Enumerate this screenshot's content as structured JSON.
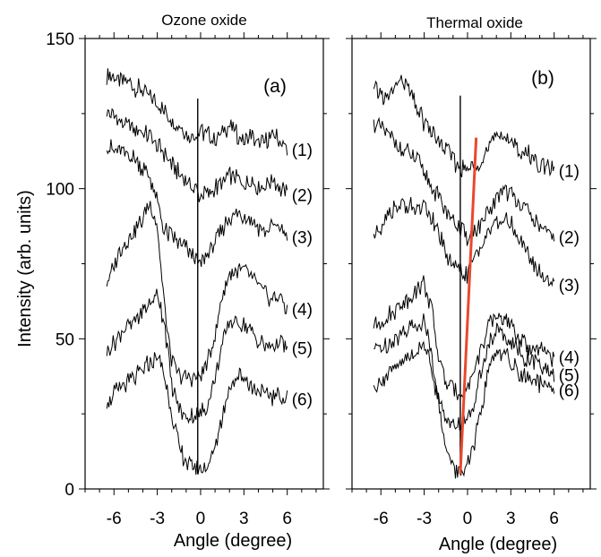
{
  "figure": {
    "ylabel": "Intensity (arb. units)"
  },
  "chart_data": [
    {
      "type": "line",
      "panel_title": "Ozone oxide",
      "panel_tag": "(a)",
      "xlabel": "Angle (degree)",
      "ylabel": "Intensity (arb. units)",
      "xlim": [
        -8,
        8.5
      ],
      "ylim": [
        0,
        150
      ],
      "xticks": [
        -6,
        -3,
        0,
        3,
        6
      ],
      "yticks": [
        0,
        50,
        100,
        150
      ],
      "reference_line": {
        "x": -0.2,
        "y_range": [
          5,
          130
        ],
        "color": "#000000"
      },
      "x": [
        -6.5,
        -5.5,
        -4.5,
        -3.5,
        -3,
        -2.5,
        -2,
        -1.5,
        -1,
        -0.5,
        0,
        0.5,
        1,
        1.5,
        2,
        2.5,
        3,
        3.5,
        4,
        4.5,
        5,
        5.5,
        6
      ],
      "series": [
        {
          "name": "(1)",
          "values": [
            138,
            136,
            134,
            130,
            128,
            126,
            123,
            121,
            118,
            118,
            119,
            118,
            116,
            119,
            121,
            118,
            116,
            118,
            115,
            116,
            118,
            116,
            113
          ]
        },
        {
          "name": "(2)",
          "values": [
            126,
            122,
            120,
            117,
            114,
            112,
            108,
            105,
            103,
            100,
            98,
            98,
            100,
            102,
            105,
            103,
            101,
            103,
            100,
            101,
            103,
            100,
            98
          ]
        },
        {
          "name": "(3)",
          "values": [
            114,
            112,
            110,
            104,
            95,
            86,
            84,
            82,
            80,
            77,
            75,
            78,
            82,
            86,
            90,
            92,
            91,
            90,
            87,
            86,
            88,
            87,
            84
          ]
        },
        {
          "name": "(4)",
          "values": [
            68,
            80,
            86,
            95,
            88,
            60,
            42,
            38,
            37,
            37,
            38,
            42,
            52,
            64,
            72,
            73,
            73,
            71,
            68,
            65,
            63,
            64,
            60
          ]
        },
        {
          "name": "(5)",
          "values": [
            45,
            52,
            56,
            62,
            65,
            55,
            35,
            26,
            24,
            24,
            25,
            28,
            36,
            48,
            55,
            56,
            55,
            52,
            50,
            47,
            48,
            49,
            47
          ]
        },
        {
          "name": "(6)",
          "values": [
            29,
            34,
            37,
            42,
            44,
            38,
            25,
            14,
            9,
            7,
            6,
            8,
            14,
            24,
            34,
            38,
            37,
            34,
            33,
            31,
            31,
            31,
            30
          ]
        }
      ]
    },
    {
      "type": "line",
      "panel_title": "Thermal oxide",
      "panel_tag": "(b)",
      "xlabel": "Angle (degree)",
      "ylabel": "",
      "xlim": [
        -8,
        8.5
      ],
      "ylim": [
        0,
        150
      ],
      "xticks": [
        -6,
        -3,
        0,
        3,
        6
      ],
      "yticks": [
        0,
        50,
        100,
        150
      ],
      "reference_line": {
        "x": -0.5,
        "y_range": [
          5,
          131
        ],
        "color": "#000000"
      },
      "fit_line": {
        "x": [
          -0.5,
          0.6
        ],
        "y": [
          5,
          117
        ],
        "color": "#e8482e"
      },
      "x": [
        -6.5,
        -5.5,
        -4.5,
        -3.5,
        -3,
        -2.5,
        -2,
        -1.5,
        -1,
        -0.5,
        0,
        0.5,
        1,
        1.5,
        2,
        2.5,
        3,
        3.5,
        4,
        4.5,
        5,
        5.5,
        6
      ],
      "series": [
        {
          "name": "(1)",
          "values": [
            133,
            130,
            137,
            126,
            122,
            119,
            116,
            113,
            110,
            107,
            106,
            108,
            110,
            114,
            117,
            118,
            116,
            113,
            112,
            111,
            108,
            107,
            106
          ]
        },
        {
          "name": "(2)",
          "values": [
            122,
            118,
            113,
            109,
            105,
            101,
            97,
            93,
            90,
            86,
            84,
            86,
            88,
            92,
            97,
            100,
            98,
            96,
            93,
            90,
            87,
            85,
            84
          ]
        },
        {
          "name": "(3)",
          "values": [
            84,
            92,
            95,
            93,
            94,
            90,
            85,
            78,
            75,
            72,
            72,
            76,
            82,
            86,
            88,
            90,
            88,
            84,
            80,
            76,
            72,
            70,
            68
          ]
        },
        {
          "name": "(4)",
          "values": [
            54,
            57,
            62,
            66,
            69,
            60,
            43,
            36,
            33,
            32,
            34,
            40,
            48,
            54,
            58,
            57,
            54,
            51,
            48,
            47,
            46,
            45,
            44
          ]
        },
        {
          "name": "(5)",
          "values": [
            46,
            48,
            52,
            55,
            56,
            45,
            30,
            23,
            21,
            21,
            23,
            30,
            40,
            48,
            52,
            52,
            49,
            46,
            44,
            43,
            41,
            39,
            38
          ]
        },
        {
          "name": "(6)",
          "values": [
            34,
            38,
            42,
            46,
            48,
            42,
            28,
            14,
            7,
            5,
            7,
            15,
            28,
            40,
            46,
            45,
            42,
            39,
            37,
            36,
            35,
            34,
            33
          ]
        }
      ]
    }
  ]
}
